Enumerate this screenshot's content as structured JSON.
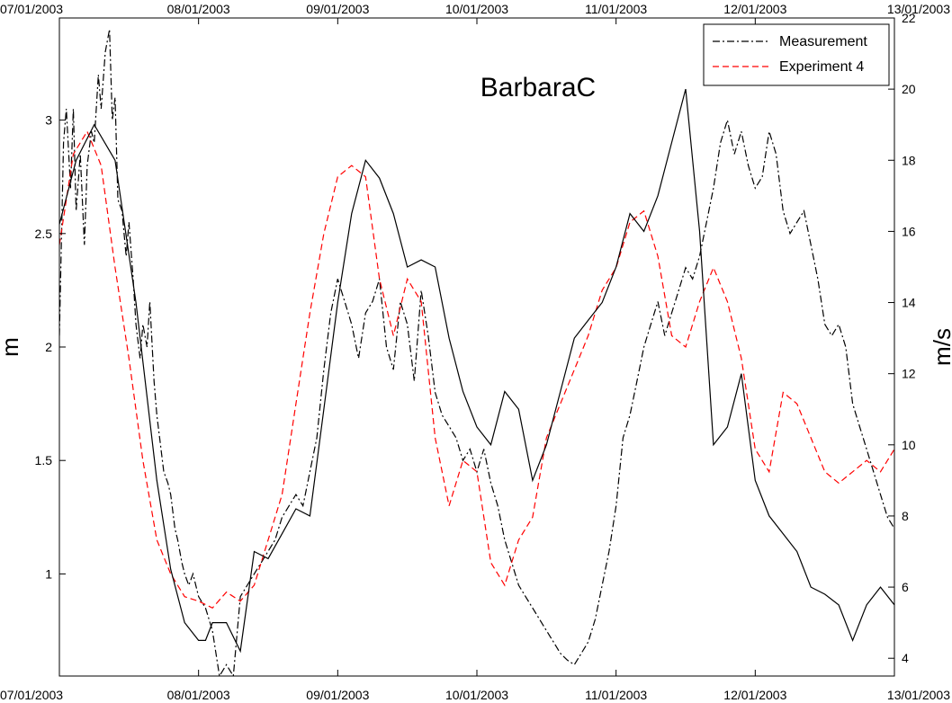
{
  "chart_data": {
    "type": "line",
    "title": "BarbaraC",
    "x_ticks": [
      "07/01/2003",
      "08/01/2003",
      "09/01/2003",
      "10/01/2003",
      "11/01/2003",
      "12/01/2003",
      "13/01/2003"
    ],
    "xlim": [
      0,
      6
    ],
    "y_left": {
      "label": "m",
      "lim": [
        0.55,
        3.45
      ],
      "ticks": [
        1,
        1.5,
        2,
        2.5,
        3
      ],
      "tick_labels": [
        "1",
        "1.5",
        "2",
        "2.5",
        "3"
      ]
    },
    "y_right": {
      "label": "m/s",
      "lim": [
        3.5,
        22
      ],
      "ticks": [
        4,
        6,
        8,
        10,
        12,
        14,
        16,
        18,
        20,
        22
      ],
      "tick_labels": [
        "4",
        "6",
        "8",
        "10",
        "12",
        "14",
        "16",
        "18",
        "20",
        "22"
      ]
    },
    "legend": {
      "position": "top-right"
    },
    "series": [
      {
        "name": "Measurement",
        "axis": "left",
        "style": "dashdot",
        "color": "#000000",
        "x": [
          0,
          0.03,
          0.05,
          0.08,
          0.1,
          0.12,
          0.15,
          0.18,
          0.2,
          0.23,
          0.25,
          0.28,
          0.3,
          0.33,
          0.36,
          0.38,
          0.4,
          0.42,
          0.45,
          0.48,
          0.5,
          0.53,
          0.55,
          0.58,
          0.6,
          0.63,
          0.65,
          0.68,
          0.7,
          0.72,
          0.75,
          0.78,
          0.8,
          0.83,
          0.85,
          0.88,
          0.9,
          0.93,
          0.96,
          1.0,
          1.05,
          1.1,
          1.15,
          1.2,
          1.25,
          1.3,
          1.35,
          1.4,
          1.45,
          1.5,
          1.55,
          1.6,
          1.65,
          1.7,
          1.75,
          1.8,
          1.85,
          1.9,
          1.95,
          2.0,
          2.05,
          2.1,
          2.15,
          2.2,
          2.25,
          2.3,
          2.35,
          2.4,
          2.45,
          2.5,
          2.55,
          2.6,
          2.65,
          2.7,
          2.75,
          2.8,
          2.85,
          2.9,
          2.95,
          3.0,
          3.05,
          3.1,
          3.15,
          3.2,
          3.25,
          3.3,
          3.35,
          3.4,
          3.45,
          3.5,
          3.55,
          3.6,
          3.65,
          3.7,
          3.75,
          3.8,
          3.85,
          3.9,
          3.95,
          4.0,
          4.05,
          4.1,
          4.15,
          4.2,
          4.25,
          4.3,
          4.35,
          4.4,
          4.45,
          4.5,
          4.55,
          4.6,
          4.65,
          4.7,
          4.75,
          4.8,
          4.85,
          4.9,
          4.95,
          5.0,
          5.05,
          5.1,
          5.15,
          5.2,
          5.25,
          5.3,
          5.35,
          5.4,
          5.45,
          5.5,
          5.55,
          5.6,
          5.65,
          5.7,
          5.75,
          5.8,
          5.85,
          5.9,
          5.95,
          6.0
        ],
        "y": [
          2.05,
          2.9,
          3.05,
          2.7,
          3.05,
          2.6,
          2.85,
          2.45,
          2.8,
          2.95,
          2.9,
          3.2,
          3.05,
          3.3,
          3.4,
          3.0,
          3.1,
          2.65,
          2.6,
          2.4,
          2.55,
          2.3,
          2.1,
          1.95,
          2.1,
          2.0,
          2.2,
          1.85,
          1.7,
          1.6,
          1.45,
          1.4,
          1.35,
          1.2,
          1.15,
          1.05,
          1.0,
          0.95,
          1.0,
          0.9,
          0.85,
          0.75,
          0.55,
          0.6,
          0.55,
          0.9,
          0.95,
          1.0,
          1.05,
          1.1,
          1.15,
          1.25,
          1.3,
          1.35,
          1.3,
          1.45,
          1.6,
          1.9,
          2.15,
          2.3,
          2.2,
          2.1,
          1.95,
          2.15,
          2.2,
          2.3,
          2.0,
          1.9,
          2.2,
          2.1,
          1.85,
          2.25,
          2.05,
          1.8,
          1.7,
          1.65,
          1.6,
          1.5,
          1.55,
          1.45,
          1.55,
          1.4,
          1.3,
          1.15,
          1.05,
          0.95,
          0.9,
          0.85,
          0.8,
          0.75,
          0.7,
          0.65,
          0.62,
          0.6,
          0.65,
          0.7,
          0.8,
          0.95,
          1.1,
          1.3,
          1.6,
          1.7,
          1.85,
          2.0,
          2.1,
          2.2,
          2.05,
          2.15,
          2.25,
          2.35,
          2.3,
          2.4,
          2.55,
          2.7,
          2.9,
          3.0,
          2.85,
          2.95,
          2.8,
          2.7,
          2.75,
          2.95,
          2.85,
          2.6,
          2.5,
          2.55,
          2.6,
          2.45,
          2.3,
          2.1,
          2.05,
          2.1,
          2.0,
          1.75,
          1.65,
          1.55,
          1.45,
          1.35,
          1.25,
          1.2
        ]
      },
      {
        "name": "Experiment 4",
        "axis": "left",
        "style": "dashed",
        "color": "#ff0000",
        "x": [
          0,
          0.1,
          0.2,
          0.3,
          0.4,
          0.5,
          0.6,
          0.7,
          0.8,
          0.9,
          1.0,
          1.1,
          1.2,
          1.3,
          1.4,
          1.5,
          1.6,
          1.7,
          1.8,
          1.9,
          2.0,
          2.1,
          2.2,
          2.3,
          2.4,
          2.5,
          2.6,
          2.7,
          2.8,
          2.9,
          3.0,
          3.1,
          3.2,
          3.3,
          3.4,
          3.5,
          3.6,
          3.7,
          3.8,
          3.9,
          4.0,
          4.1,
          4.2,
          4.3,
          4.4,
          4.5,
          4.6,
          4.7,
          4.8,
          4.9,
          5.0,
          5.1,
          5.2,
          5.3,
          5.4,
          5.5,
          5.6,
          5.7,
          5.8,
          5.9,
          6.0
        ],
        "y": [
          2.45,
          2.85,
          2.95,
          2.8,
          2.35,
          1.95,
          1.5,
          1.15,
          1.0,
          0.9,
          0.88,
          0.85,
          0.92,
          0.88,
          0.95,
          1.15,
          1.35,
          1.75,
          2.15,
          2.5,
          2.75,
          2.8,
          2.75,
          2.3,
          2.05,
          2.3,
          2.2,
          1.6,
          1.3,
          1.5,
          1.45,
          1.05,
          0.95,
          1.15,
          1.25,
          1.6,
          1.75,
          1.9,
          2.05,
          2.25,
          2.35,
          2.55,
          2.6,
          2.4,
          2.05,
          2.0,
          2.2,
          2.35,
          2.2,
          1.95,
          1.55,
          1.45,
          1.8,
          1.75,
          1.6,
          1.45,
          1.4,
          1.45,
          1.5,
          1.45,
          1.55
        ]
      },
      {
        "name": "",
        "axis": "right",
        "style": "solid",
        "color": "#000000",
        "x": [
          0,
          0.12,
          0.25,
          0.4,
          0.55,
          0.7,
          0.8,
          0.9,
          1.0,
          1.05,
          1.1,
          1.2,
          1.3,
          1.4,
          1.5,
          1.6,
          1.7,
          1.8,
          1.9,
          2.0,
          2.1,
          2.2,
          2.3,
          2.4,
          2.5,
          2.6,
          2.7,
          2.8,
          2.9,
          3.0,
          3.1,
          3.2,
          3.3,
          3.4,
          3.5,
          3.6,
          3.7,
          3.8,
          3.9,
          4.0,
          4.1,
          4.2,
          4.3,
          4.4,
          4.5,
          4.6,
          4.7,
          4.8,
          4.9,
          5.0,
          5.1,
          5.2,
          5.3,
          5.4,
          5.5,
          5.6,
          5.7,
          5.8,
          5.9,
          6.0
        ],
        "y": [
          16.2,
          18.0,
          19.0,
          18.0,
          14.0,
          9.0,
          6.5,
          5.0,
          4.5,
          4.5,
          5.0,
          5.0,
          4.2,
          7.0,
          6.8,
          7.5,
          8.2,
          8.0,
          11.0,
          14.0,
          16.5,
          18.0,
          17.5,
          16.5,
          15.0,
          15.2,
          15.0,
          13.0,
          11.5,
          10.5,
          10.0,
          11.5,
          11.0,
          9.0,
          10.0,
          11.5,
          13.0,
          13.5,
          14.0,
          15.0,
          16.5,
          16.0,
          17.0,
          18.5,
          20.0,
          16.0,
          10.0,
          10.5,
          12.0,
          9.0,
          8.0,
          7.5,
          7.0,
          6.0,
          5.8,
          5.5,
          4.5,
          5.5,
          6.0,
          5.5
        ]
      }
    ]
  }
}
